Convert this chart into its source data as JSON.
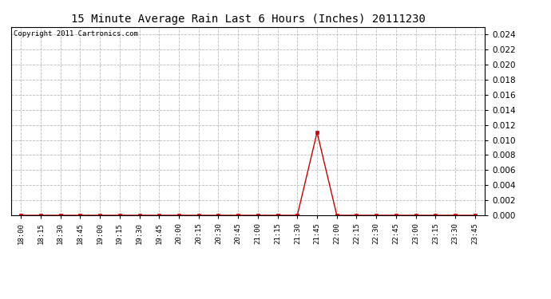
{
  "title": "15 Minute Average Rain Last 6 Hours (Inches) 20111230",
  "copyright_text": "Copyright 2011 Cartronics.com",
  "line_color": "#cc0000",
  "marker": "s",
  "marker_size": 2.5,
  "background_color": "#ffffff",
  "grid_color": "#bbbbbb",
  "ylim": [
    0.0,
    0.025
  ],
  "yticks": [
    0.0,
    0.002,
    0.004,
    0.006,
    0.008,
    0.01,
    0.012,
    0.014,
    0.016,
    0.018,
    0.02,
    0.022,
    0.024
  ],
  "x_labels": [
    "18:00",
    "18:15",
    "18:30",
    "18:45",
    "19:00",
    "19:15",
    "19:30",
    "19:45",
    "20:00",
    "20:15",
    "20:30",
    "20:45",
    "21:00",
    "21:15",
    "21:30",
    "21:45",
    "22:00",
    "22:15",
    "22:30",
    "22:45",
    "23:00",
    "23:15",
    "23:30",
    "23:45"
  ],
  "y_values": [
    0.0,
    0.0,
    0.0,
    0.0,
    0.0,
    0.0,
    0.0,
    0.0,
    0.0,
    0.0,
    0.0,
    0.0,
    0.0,
    0.0,
    0.0,
    0.011,
    0.0,
    0.0,
    0.0,
    0.0,
    0.0,
    0.0,
    0.0,
    0.0
  ],
  "title_fontsize": 10,
  "ytick_fontsize": 7.5,
  "xtick_fontsize": 6.5,
  "copyright_fontsize": 6.5
}
